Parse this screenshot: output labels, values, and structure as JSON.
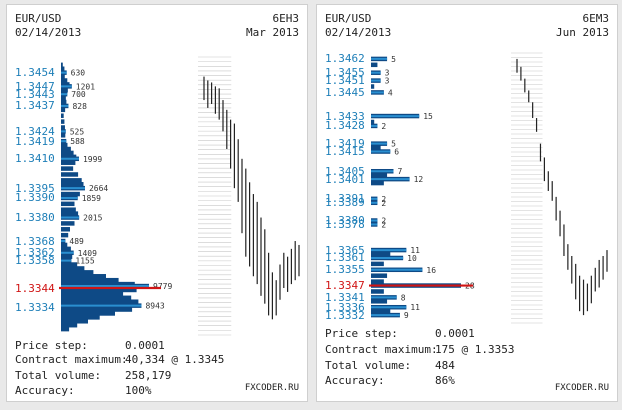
{
  "brand_color": "#1a4f8a",
  "bar_color": "#0e4a86",
  "highlight_bar_color": "#2a8fd0",
  "current_line_color": "#d01414",
  "chart_data": [
    {
      "type": "bar",
      "orientation": "horizontal",
      "title": "EUR/USD",
      "date": "02/14/2013",
      "contract": "6EH3",
      "contract_month": "Mar 2013",
      "price_range": [
        1.332,
        1.3462
      ],
      "current_price": "1.3344",
      "price_labels": [
        "1.3454",
        "1.3447",
        "1.3443",
        "1.3437",
        "1.3424",
        "1.3419",
        "1.3410",
        "1.3395",
        "1.3390",
        "1.3380",
        "1.3368",
        "1.3362",
        "1.3358",
        "1.3344",
        "1.3334"
      ],
      "annotated_volumes": [
        {
          "price": 1.3454,
          "label": "630"
        },
        {
          "price": 1.3447,
          "label": "1201"
        },
        {
          "price": 1.3443,
          "label": "700"
        },
        {
          "price": 1.3437,
          "label": "828"
        },
        {
          "price": 1.3424,
          "label": "525"
        },
        {
          "price": 1.3419,
          "label": "588"
        },
        {
          "price": 1.341,
          "label": "1999"
        },
        {
          "price": 1.3395,
          "label": "2664"
        },
        {
          "price": 1.339,
          "label": "1859"
        },
        {
          "price": 1.338,
          "label": "2015"
        },
        {
          "price": 1.3368,
          "label": "489"
        },
        {
          "price": 1.3362,
          "label": "1409"
        },
        {
          "price": 1.3358,
          "label": "1155"
        },
        {
          "price": 1.3345,
          "label": "9779"
        },
        {
          "price": 1.3335,
          "label": "8943"
        }
      ],
      "volume_max": 9779,
      "profile": [
        [
          1.3458,
          200
        ],
        [
          1.3456,
          380
        ],
        [
          1.3454,
          630
        ],
        [
          1.3452,
          420
        ],
        [
          1.345,
          700
        ],
        [
          1.3448,
          950
        ],
        [
          1.3447,
          1201
        ],
        [
          1.3445,
          760
        ],
        [
          1.3443,
          700
        ],
        [
          1.3441,
          540
        ],
        [
          1.3439,
          600
        ],
        [
          1.3437,
          828
        ],
        [
          1.3435,
          460
        ],
        [
          1.3432,
          300
        ],
        [
          1.3429,
          380
        ],
        [
          1.3426,
          440
        ],
        [
          1.3424,
          525
        ],
        [
          1.3422,
          480
        ],
        [
          1.3419,
          588
        ],
        [
          1.3417,
          720
        ],
        [
          1.3415,
          1100
        ],
        [
          1.3413,
          1400
        ],
        [
          1.3411,
          1700
        ],
        [
          1.341,
          1999
        ],
        [
          1.3408,
          1600
        ],
        [
          1.3405,
          1350
        ],
        [
          1.3402,
          1900
        ],
        [
          1.3399,
          2300
        ],
        [
          1.3397,
          2500
        ],
        [
          1.3395,
          2664
        ],
        [
          1.3392,
          2100
        ],
        [
          1.339,
          1859
        ],
        [
          1.3387,
          1500
        ],
        [
          1.3384,
          1650
        ],
        [
          1.3382,
          1900
        ],
        [
          1.338,
          2015
        ],
        [
          1.3377,
          1500
        ],
        [
          1.3374,
          1000
        ],
        [
          1.3371,
          800
        ],
        [
          1.3368,
          489
        ],
        [
          1.3366,
          700
        ],
        [
          1.3364,
          1100
        ],
        [
          1.3362,
          1409
        ],
        [
          1.336,
          1250
        ],
        [
          1.3358,
          1155
        ],
        [
          1.3356,
          1800
        ],
        [
          1.3354,
          2600
        ],
        [
          1.3352,
          3600
        ],
        [
          1.335,
          5000
        ],
        [
          1.3348,
          6400
        ],
        [
          1.3346,
          8200
        ],
        [
          1.3345,
          9779
        ],
        [
          1.3343,
          8400
        ],
        [
          1.3341,
          6900
        ],
        [
          1.3339,
          7800
        ],
        [
          1.3337,
          8600
        ],
        [
          1.3335,
          8943
        ],
        [
          1.3333,
          7900
        ],
        [
          1.3331,
          6000
        ],
        [
          1.3329,
          4300
        ],
        [
          1.3327,
          3000
        ],
        [
          1.3325,
          1800
        ],
        [
          1.3323,
          900
        ]
      ],
      "minichart": [
        [
          1.3452,
          1.344
        ],
        [
          1.345,
          1.3436
        ],
        [
          1.3449,
          1.3438
        ],
        [
          1.3447,
          1.3433
        ],
        [
          1.3446,
          1.343
        ],
        [
          1.344,
          1.3424
        ],
        [
          1.3435,
          1.3415
        ],
        [
          1.343,
          1.3405
        ],
        [
          1.3428,
          1.3395
        ],
        [
          1.342,
          1.3388
        ],
        [
          1.341,
          1.3372
        ],
        [
          1.3405,
          1.336
        ],
        [
          1.3398,
          1.3355
        ],
        [
          1.3392,
          1.335
        ],
        [
          1.3388,
          1.3346
        ],
        [
          1.338,
          1.334
        ],
        [
          1.3374,
          1.3336
        ],
        [
          1.3362,
          1.333
        ],
        [
          1.3352,
          1.3328
        ],
        [
          1.3348,
          1.333
        ],
        [
          1.3356,
          1.3338
        ],
        [
          1.3362,
          1.3344
        ],
        [
          1.336,
          1.3342
        ],
        [
          1.3364,
          1.3346
        ],
        [
          1.3368,
          1.3348
        ],
        [
          1.3366,
          1.335
        ]
      ],
      "stats": {
        "price_step_label": "Price step:",
        "price_step": "0.0001",
        "contract_max_label": "Contract maximum:",
        "contract_max": "40,334 @ 1.3345",
        "total_volume_label": "Total volume:",
        "total_volume": "258,179",
        "accuracy_label": "Accuracy:",
        "accuracy": "100%"
      },
      "brand": "FXCODER.RU"
    },
    {
      "type": "bar",
      "orientation": "horizontal",
      "title": "EUR/USD",
      "date": "02/14/2013",
      "contract": "6EM3",
      "contract_month": "Jun 2013",
      "price_range": [
        1.3328,
        1.3465
      ],
      "current_price": "1.3347",
      "price_labels": [
        "1.3462",
        "1.3455",
        "1.3451",
        "1.3445",
        "1.3433",
        "1.3428",
        "1.3419",
        "1.3415",
        "1.3405",
        "1.3401",
        "1.3391",
        "1.3389",
        "1.3380",
        "1.3378",
        "1.3365",
        "1.3361",
        "1.3355",
        "1.3347",
        "1.3341",
        "1.3336",
        "1.3332"
      ],
      "annotated_volumes": [
        {
          "price": 1.3462,
          "label": "5"
        },
        {
          "price": 1.3455,
          "label": "3"
        },
        {
          "price": 1.3451,
          "label": "3"
        },
        {
          "price": 1.3445,
          "label": "4"
        },
        {
          "price": 1.3433,
          "label": "15"
        },
        {
          "price": 1.3428,
          "label": "2"
        },
        {
          "price": 1.3419,
          "label": "5"
        },
        {
          "price": 1.3415,
          "label": "6"
        },
        {
          "price": 1.3405,
          "label": "7"
        },
        {
          "price": 1.3401,
          "label": "12"
        },
        {
          "price": 1.3391,
          "label": "2"
        },
        {
          "price": 1.3389,
          "label": "2"
        },
        {
          "price": 1.338,
          "label": "2"
        },
        {
          "price": 1.3378,
          "label": "2"
        },
        {
          "price": 1.3365,
          "label": "11"
        },
        {
          "price": 1.3361,
          "label": "10"
        },
        {
          "price": 1.3355,
          "label": "16"
        },
        {
          "price": 1.3347,
          "label": "28"
        },
        {
          "price": 1.3341,
          "label": "8"
        },
        {
          "price": 1.3336,
          "label": "11"
        },
        {
          "price": 1.3332,
          "label": "9"
        }
      ],
      "volume_max": 28,
      "profile": [
        [
          1.3462,
          5
        ],
        [
          1.3459,
          2
        ],
        [
          1.3455,
          3
        ],
        [
          1.3451,
          3
        ],
        [
          1.3448,
          1
        ],
        [
          1.3445,
          4
        ],
        [
          1.3433,
          15
        ],
        [
          1.343,
          1
        ],
        [
          1.3428,
          2
        ],
        [
          1.3419,
          5
        ],
        [
          1.3417,
          3
        ],
        [
          1.3415,
          6
        ],
        [
          1.3405,
          7
        ],
        [
          1.3403,
          5
        ],
        [
          1.3401,
          12
        ],
        [
          1.3399,
          4
        ],
        [
          1.3391,
          2
        ],
        [
          1.3389,
          2
        ],
        [
          1.338,
          2
        ],
        [
          1.3378,
          2
        ],
        [
          1.3365,
          11
        ],
        [
          1.3363,
          6
        ],
        [
          1.3361,
          10
        ],
        [
          1.3358,
          4
        ],
        [
          1.3355,
          16
        ],
        [
          1.3352,
          5
        ],
        [
          1.3349,
          4
        ],
        [
          1.3347,
          28
        ],
        [
          1.3344,
          4
        ],
        [
          1.3341,
          8
        ],
        [
          1.3339,
          5
        ],
        [
          1.3336,
          11
        ],
        [
          1.3334,
          6
        ],
        [
          1.3332,
          9
        ]
      ],
      "minichart": [
        [
          1.3462,
          1.3455
        ],
        [
          1.3458,
          1.3451
        ],
        [
          1.3452,
          1.3445
        ],
        [
          1.3446,
          1.344
        ],
        [
          1.344,
          1.3432
        ],
        [
          1.3432,
          1.3425
        ],
        [
          1.3419,
          1.341
        ],
        [
          1.3412,
          1.34
        ],
        [
          1.3405,
          1.3395
        ],
        [
          1.34,
          1.339
        ],
        [
          1.3392,
          1.338
        ],
        [
          1.3385,
          1.3372
        ],
        [
          1.3378,
          1.3362
        ],
        [
          1.3368,
          1.3355
        ],
        [
          1.3362,
          1.3348
        ],
        [
          1.3358,
          1.334
        ],
        [
          1.3352,
          1.3334
        ],
        [
          1.335,
          1.3332
        ],
        [
          1.3348,
          1.3334
        ],
        [
          1.3352,
          1.3338
        ],
        [
          1.3356,
          1.3344
        ],
        [
          1.336,
          1.3346
        ],
        [
          1.3362,
          1.335
        ],
        [
          1.3365,
          1.3354
        ]
      ],
      "stats": {
        "price_step_label": "Price step:",
        "price_step": "0.0001",
        "contract_max_label": "Contract maximum:",
        "contract_max": "175 @ 1.3353",
        "total_volume_label": "Total volume:",
        "total_volume": "484",
        "accuracy_label": "Accuracy:",
        "accuracy": "86%"
      },
      "brand": "FXCODER.RU"
    }
  ]
}
